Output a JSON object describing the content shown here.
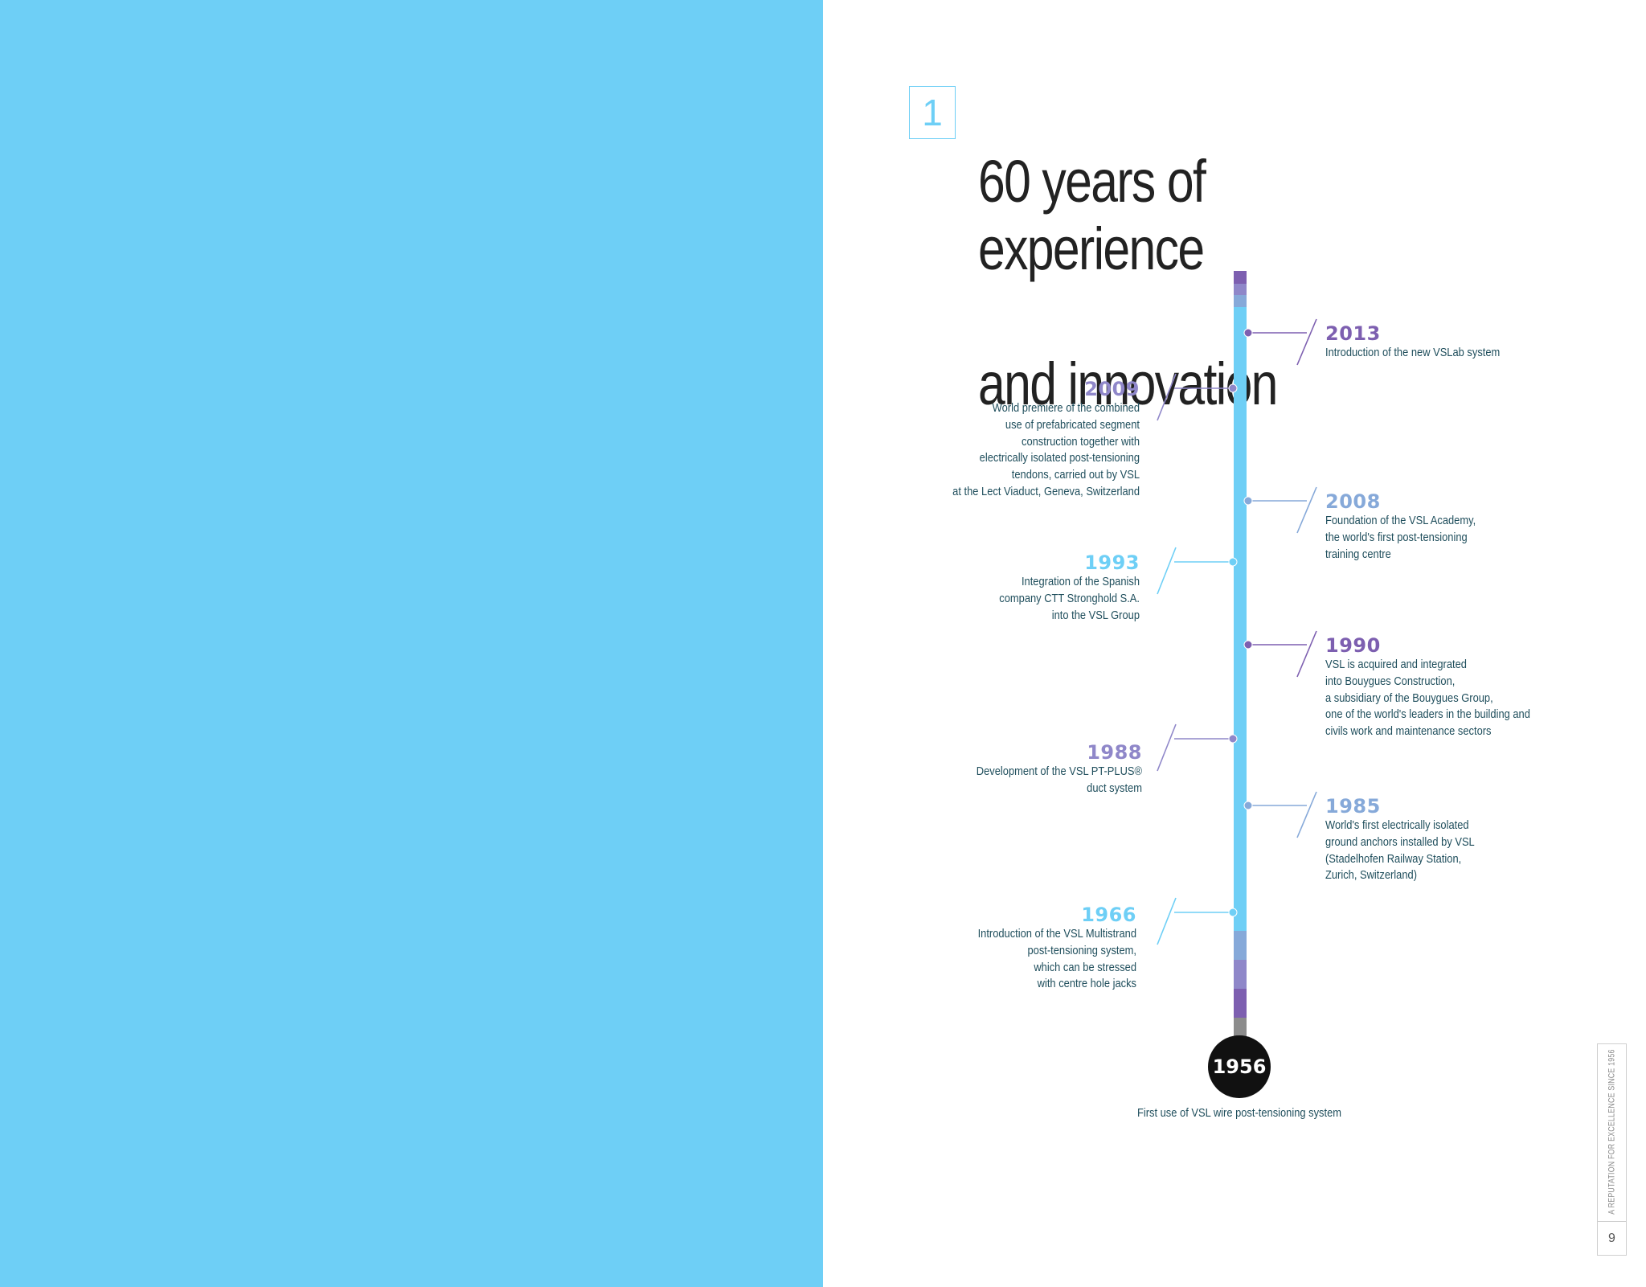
{
  "section": {
    "number": "1",
    "title_lines": [
      "60 years of experience",
      "and innovation"
    ]
  },
  "colors": {
    "panel_blue": "#6ecff6",
    "purple_dark": "#7d5fb0",
    "purple_mid": "#8f87c9",
    "blue_grey": "#86a9d9",
    "light_blue": "#6ecff6"
  },
  "timeline": {
    "origin": {
      "year": "1956",
      "caption": "First use of VSL wire post-tensioning system"
    },
    "events": [
      {
        "year": "2013",
        "side": "right",
        "color": "#7d5fb0",
        "lines": [
          "Introduction of the new VSLab system"
        ]
      },
      {
        "year": "2009",
        "side": "left",
        "color": "#8f87c9",
        "lines": [
          "World premiere of the combined",
          "use of prefabricated segment",
          "construction together with",
          "electrically isolated post-tensioning",
          "tendons, carried out by VSL",
          "at the Lect Viaduct, Geneva, Switzerland"
        ]
      },
      {
        "year": "2008",
        "side": "right",
        "color": "#86a9d9",
        "lines": [
          "Foundation of the VSL Academy,",
          "the world's first post-tensioning",
          "training centre"
        ]
      },
      {
        "year": "1993",
        "side": "left",
        "color": "#6ecff6",
        "lines": [
          "Integration of the Spanish",
          "company CTT Stronghold S.A.",
          "into the VSL Group"
        ]
      },
      {
        "year": "1990",
        "side": "right",
        "color": "#7d5fb0",
        "lines": [
          "VSL is acquired and integrated",
          "into Bouygues Construction,",
          "a subsidiary of the Bouygues Group,",
          "one of the world's leaders in the building and",
          "civils work and maintenance sectors"
        ]
      },
      {
        "year": "1988",
        "side": "left",
        "color": "#8f87c9",
        "lines": [
          "Development of the VSL PT-PLUS®",
          "duct system"
        ]
      },
      {
        "year": "1985",
        "side": "right",
        "color": "#86a9d9",
        "lines": [
          "World's first electrically isolated",
          "ground anchors installed by VSL",
          "(Stadelhofen Railway Station,",
          "Zurich, Switzerland)"
        ]
      },
      {
        "year": "1966",
        "side": "left",
        "color": "#6ecff6",
        "lines": [
          "Introduction of the VSL Multistrand",
          "post-tensioning system,",
          "which can be stressed",
          "with centre hole jacks"
        ]
      }
    ]
  },
  "footer": {
    "tagline": "A REPUTATION FOR EXCELLENCE SINCE 1956",
    "page_number": "9"
  }
}
